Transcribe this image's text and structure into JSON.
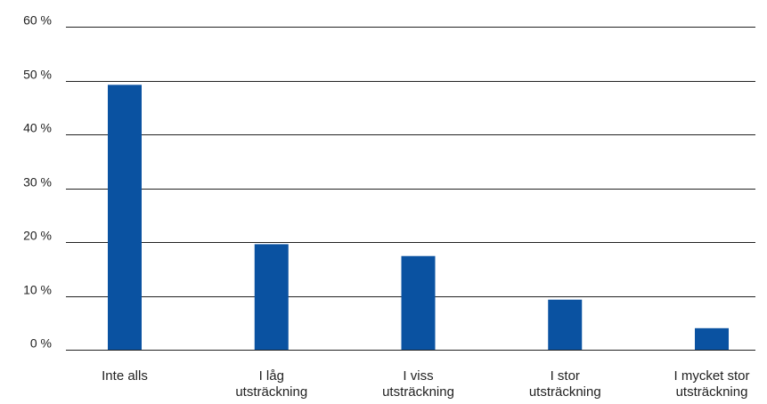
{
  "chart_data": {
    "type": "bar",
    "categories": [
      [
        "Inte alls"
      ],
      [
        "I låg",
        "utsträckning"
      ],
      [
        "I viss",
        "utsträckning"
      ],
      [
        "I stor",
        "utsträckning"
      ],
      [
        "I mycket stor",
        "utsträckning"
      ]
    ],
    "values": [
      49.2,
      19.6,
      17.4,
      9.3,
      4.0
    ],
    "y_ticks": [
      "0 %",
      "10 %",
      "20 %",
      "30 %",
      "40 %",
      "50 %",
      "60 %"
    ],
    "ylim": [
      0,
      60
    ],
    "grid": true,
    "bar_color": "#0a52a1",
    "title": "",
    "xlabel": "",
    "ylabel": ""
  }
}
